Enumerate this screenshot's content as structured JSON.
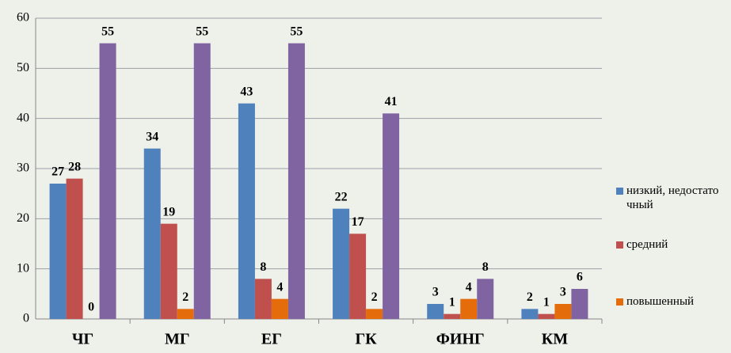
{
  "chart_data": {
    "type": "bar",
    "categories": [
      "ЧГ",
      "МГ",
      "ЕГ",
      "ГК",
      "ФИНГ",
      "КМ"
    ],
    "series": [
      {
        "name": "низкий, недостаточный",
        "color": "#4f81bd",
        "values": [
          27,
          34,
          43,
          22,
          3,
          2
        ]
      },
      {
        "name": "средний",
        "color": "#c0504d",
        "values": [
          28,
          19,
          8,
          17,
          1,
          1
        ]
      },
      {
        "name": "повышенный",
        "color": "#e46c0a",
        "values": [
          0,
          2,
          4,
          2,
          4,
          3
        ]
      },
      {
        "color": "#8064a2",
        "values": [
          55,
          55,
          55,
          41,
          8,
          6
        ]
      }
    ],
    "ylim": [
      0,
      60
    ],
    "yticks": [
      0,
      10,
      20,
      30,
      40,
      50,
      60
    ],
    "grid": true,
    "legend": "right"
  }
}
